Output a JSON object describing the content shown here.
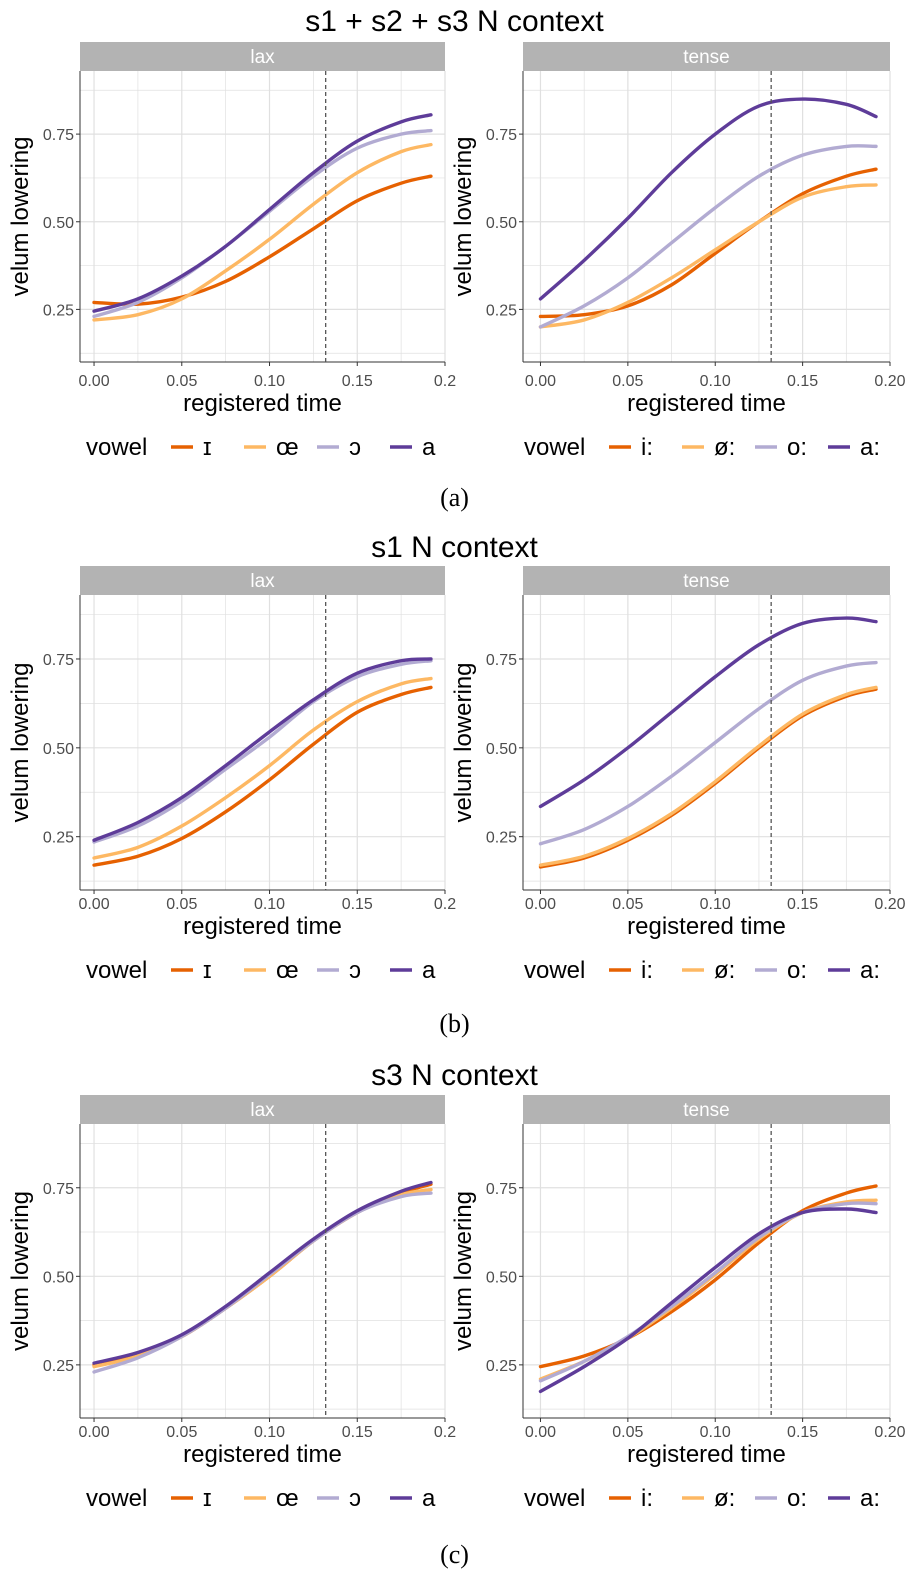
{
  "colors": {
    "strip_bg": "#b3b3b3",
    "grid": "#e0e0e0",
    "axis": "#333333",
    "vline": "#555555"
  },
  "figure": {
    "vowel_legend_title": "vowel",
    "vowel_colors": [
      "#e66101",
      "#fdb863",
      "#b2abd2",
      "#5e3c99"
    ],
    "lax_vowels": [
      "ɪ",
      "œ",
      "ɔ",
      "a"
    ],
    "tense_vowels": [
      "i:",
      "ø:",
      "o:",
      "a:"
    ]
  },
  "chart_data": [
    {
      "type": "line",
      "title": "s1 + s2 + s3 N context",
      "caption": "(a)",
      "panels": [
        {
          "strip": "lax",
          "xlabel": "registered time",
          "ylabel": "velum lowering",
          "x_ticks": [
            "0.00",
            "0.05",
            "0.10",
            "0.15",
            "0.2"
          ],
          "y_ticks": [
            "0.25",
            "0.50",
            "0.75"
          ],
          "xlim": [
            -0.008,
            0.2
          ],
          "ylim": [
            0.1,
            0.93
          ],
          "vline_x": 0.132,
          "x": [
            0,
            0.025,
            0.05,
            0.075,
            0.1,
            0.125,
            0.15,
            0.175,
            0.192
          ],
          "series": [
            {
              "name": "ɪ",
              "values": [
                0.27,
                0.265,
                0.285,
                0.33,
                0.4,
                0.48,
                0.56,
                0.61,
                0.63
              ]
            },
            {
              "name": "œ",
              "values": [
                0.22,
                0.235,
                0.28,
                0.36,
                0.45,
                0.55,
                0.64,
                0.7,
                0.72
              ]
            },
            {
              "name": "ɔ",
              "values": [
                0.23,
                0.27,
                0.34,
                0.43,
                0.53,
                0.63,
                0.71,
                0.75,
                0.76
              ]
            },
            {
              "name": "a",
              "values": [
                0.245,
                0.28,
                0.345,
                0.43,
                0.535,
                0.64,
                0.73,
                0.785,
                0.805
              ]
            }
          ]
        },
        {
          "strip": "tense",
          "xlabel": "registered time",
          "ylabel": "velum lowering",
          "x_ticks": [
            "0.00",
            "0.05",
            "0.10",
            "0.15",
            "0.20"
          ],
          "y_ticks": [
            "0.25",
            "0.50",
            "0.75"
          ],
          "xlim": [
            -0.01,
            0.2
          ],
          "ylim": [
            0.1,
            0.93
          ],
          "vline_x": 0.132,
          "x": [
            0,
            0.025,
            0.05,
            0.075,
            0.1,
            0.125,
            0.15,
            0.175,
            0.192
          ],
          "series": [
            {
              "name": "i:",
              "values": [
                0.23,
                0.235,
                0.26,
                0.32,
                0.41,
                0.5,
                0.58,
                0.63,
                0.65
              ]
            },
            {
              "name": "ø:",
              "values": [
                0.2,
                0.22,
                0.27,
                0.34,
                0.42,
                0.5,
                0.57,
                0.6,
                0.605
              ]
            },
            {
              "name": "o:",
              "values": [
                0.2,
                0.26,
                0.34,
                0.44,
                0.54,
                0.63,
                0.69,
                0.715,
                0.715
              ]
            },
            {
              "name": "a:",
              "values": [
                0.28,
                0.39,
                0.51,
                0.64,
                0.75,
                0.83,
                0.85,
                0.835,
                0.8
              ]
            }
          ]
        }
      ]
    },
    {
      "type": "line",
      "title": "s1 N context",
      "caption": "(b)",
      "panels": [
        {
          "strip": "lax",
          "xlabel": "registered time",
          "ylabel": "velum lowering",
          "x_ticks": [
            "0.00",
            "0.05",
            "0.10",
            "0.15",
            "0.2"
          ],
          "y_ticks": [
            "0.25",
            "0.50",
            "0.75"
          ],
          "xlim": [
            -0.008,
            0.2
          ],
          "ylim": [
            0.1,
            0.93
          ],
          "vline_x": 0.132,
          "x": [
            0,
            0.025,
            0.05,
            0.075,
            0.1,
            0.125,
            0.15,
            0.175,
            0.192
          ],
          "series": [
            {
              "name": "ɪ",
              "values": [
                0.17,
                0.195,
                0.245,
                0.32,
                0.41,
                0.51,
                0.6,
                0.65,
                0.67
              ]
            },
            {
              "name": "œ",
              "values": [
                0.19,
                0.22,
                0.28,
                0.36,
                0.45,
                0.55,
                0.63,
                0.68,
                0.695
              ]
            },
            {
              "name": "ɔ",
              "values": [
                0.235,
                0.28,
                0.35,
                0.44,
                0.53,
                0.63,
                0.7,
                0.735,
                0.745
              ]
            },
            {
              "name": "a",
              "values": [
                0.24,
                0.29,
                0.36,
                0.45,
                0.545,
                0.635,
                0.71,
                0.745,
                0.75
              ]
            }
          ]
        },
        {
          "strip": "tense",
          "xlabel": "registered time",
          "ylabel": "velum lowering",
          "x_ticks": [
            "0.00",
            "0.05",
            "0.10",
            "0.15",
            "0.20"
          ],
          "y_ticks": [
            "0.25",
            "0.50",
            "0.75"
          ],
          "xlim": [
            -0.01,
            0.2
          ],
          "ylim": [
            0.1,
            0.93
          ],
          "vline_x": 0.132,
          "x": [
            0,
            0.025,
            0.05,
            0.075,
            0.1,
            0.125,
            0.15,
            0.175,
            0.192
          ],
          "series": [
            {
              "name": "i:",
              "values": [
                0.165,
                0.19,
                0.24,
                0.31,
                0.4,
                0.5,
                0.59,
                0.645,
                0.665
              ]
            },
            {
              "name": "ø:",
              "values": [
                0.17,
                0.195,
                0.245,
                0.315,
                0.405,
                0.505,
                0.595,
                0.65,
                0.67
              ]
            },
            {
              "name": "o:",
              "values": [
                0.23,
                0.27,
                0.335,
                0.42,
                0.515,
                0.61,
                0.69,
                0.73,
                0.74
              ]
            },
            {
              "name": "a:",
              "values": [
                0.335,
                0.41,
                0.5,
                0.6,
                0.7,
                0.79,
                0.85,
                0.865,
                0.855
              ]
            }
          ]
        }
      ]
    },
    {
      "type": "line",
      "title": "s3 N context",
      "caption": "(c)",
      "panels": [
        {
          "strip": "lax",
          "xlabel": "registered time",
          "ylabel": "velum lowering",
          "x_ticks": [
            "0.00",
            "0.05",
            "0.10",
            "0.15",
            "0.2"
          ],
          "y_ticks": [
            "0.25",
            "0.50",
            "0.75"
          ],
          "xlim": [
            -0.008,
            0.2
          ],
          "ylim": [
            0.1,
            0.93
          ],
          "vline_x": 0.132,
          "x": [
            0,
            0.025,
            0.05,
            0.075,
            0.1,
            0.125,
            0.15,
            0.175,
            0.192
          ],
          "series": [
            {
              "name": "ɪ",
              "values": [
                0.25,
                0.28,
                0.33,
                0.41,
                0.5,
                0.6,
                0.68,
                0.735,
                0.76
              ]
            },
            {
              "name": "œ",
              "values": [
                0.245,
                0.275,
                0.33,
                0.41,
                0.5,
                0.6,
                0.68,
                0.73,
                0.745
              ]
            },
            {
              "name": "ɔ",
              "values": [
                0.23,
                0.27,
                0.33,
                0.41,
                0.505,
                0.6,
                0.68,
                0.725,
                0.735
              ]
            },
            {
              "name": "a",
              "values": [
                0.255,
                0.285,
                0.335,
                0.415,
                0.51,
                0.605,
                0.685,
                0.74,
                0.765
              ]
            }
          ]
        },
        {
          "strip": "tense",
          "xlabel": "registered time",
          "ylabel": "velum lowering",
          "x_ticks": [
            "0.00",
            "0.05",
            "0.10",
            "0.15",
            "0.20"
          ],
          "y_ticks": [
            "0.25",
            "0.50",
            "0.75"
          ],
          "xlim": [
            -0.01,
            0.2
          ],
          "ylim": [
            0.1,
            0.93
          ],
          "vline_x": 0.132,
          "x": [
            0,
            0.025,
            0.05,
            0.075,
            0.1,
            0.125,
            0.15,
            0.175,
            0.192
          ],
          "series": [
            {
              "name": "i:",
              "values": [
                0.245,
                0.275,
                0.325,
                0.4,
                0.49,
                0.595,
                0.685,
                0.735,
                0.755
              ]
            },
            {
              "name": "ø:",
              "values": [
                0.21,
                0.26,
                0.325,
                0.41,
                0.505,
                0.605,
                0.68,
                0.71,
                0.715
              ]
            },
            {
              "name": "o:",
              "values": [
                0.205,
                0.26,
                0.33,
                0.415,
                0.51,
                0.61,
                0.68,
                0.705,
                0.705
              ]
            },
            {
              "name": "a:",
              "values": [
                0.175,
                0.245,
                0.325,
                0.425,
                0.525,
                0.62,
                0.68,
                0.69,
                0.68
              ]
            }
          ]
        }
      ]
    }
  ]
}
